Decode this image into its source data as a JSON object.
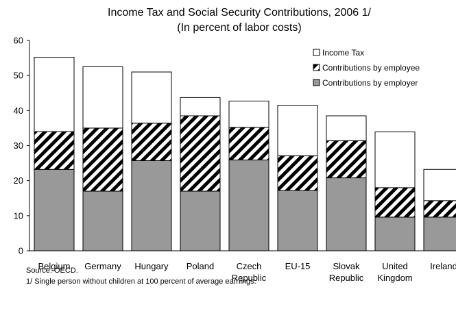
{
  "chart_data": {
    "type": "bar",
    "stacked": true,
    "title": "Income Tax and Social Security Contributions, 2006 1/",
    "subtitle": "(In percent of labor costs)",
    "categories": [
      [
        "Belgium"
      ],
      [
        "Germany"
      ],
      [
        "Hungary"
      ],
      [
        "Poland"
      ],
      [
        "Czech",
        "Republic"
      ],
      [
        "EU-15"
      ],
      [
        "Slovak",
        "Republic"
      ],
      [
        "United",
        "Kingdom"
      ],
      [
        "Ireland"
      ]
    ],
    "series": [
      {
        "name": "Contributions by employer",
        "values": [
          23.2,
          17.0,
          25.7,
          17.0,
          25.9,
          17.2,
          20.8,
          9.6,
          9.6
        ],
        "color": "#999999",
        "pattern": "solid"
      },
      {
        "name": "Contributions by employee",
        "values": [
          10.8,
          18.0,
          10.7,
          21.5,
          9.3,
          9.9,
          10.6,
          8.4,
          4.7
        ],
        "color": "#000000",
        "pattern": "hatch"
      },
      {
        "name": "Income Tax",
        "values": [
          21.2,
          17.5,
          14.6,
          5.2,
          7.5,
          14.4,
          7.1,
          15.9,
          8.9
        ],
        "color": "#ffffff",
        "pattern": "solid"
      }
    ],
    "legend_order": [
      "Income Tax",
      "Contributions by employee",
      "Contributions by employer"
    ],
    "legend_position": "top-right",
    "ylim": [
      0,
      60
    ],
    "yticks": [
      0,
      10,
      20,
      30,
      40,
      50,
      60
    ],
    "grid": false
  },
  "footnotes": {
    "source": "Source: OECD.",
    "note": "1/ Single person without children at 100 percent of average earnings."
  }
}
